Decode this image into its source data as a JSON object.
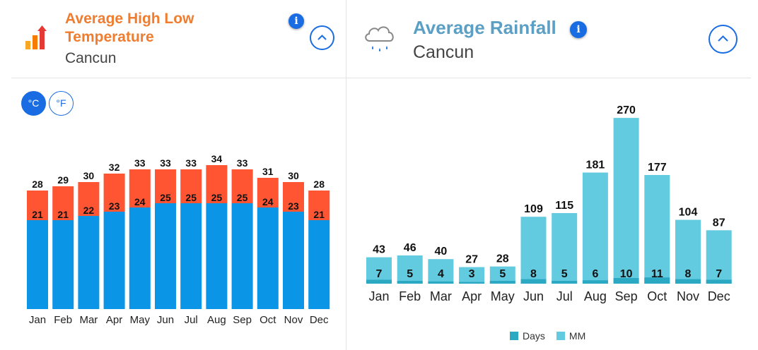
{
  "temperature": {
    "title": "Average High Low Temperature",
    "location": "Cancun",
    "info_label": "i",
    "unit_c": "°C",
    "unit_f": "°F",
    "icon": "temperature-bars-icon",
    "colors": {
      "high": "#ff5533",
      "low": "#0a95e6",
      "title": "#f07d2f",
      "accent": "#1a6ce3"
    }
  },
  "rainfall": {
    "title": "Average Rainfall",
    "location": "Cancun",
    "info_label": "i",
    "icon": "rain-cloud-icon",
    "legend": {
      "days": "Days",
      "mm": "MM"
    },
    "colors": {
      "days": "#2ba8c2",
      "mm": "#63cbe0",
      "title": "#5b9fc4"
    }
  },
  "chart_data": [
    {
      "type": "bar",
      "categories": [
        "Jan",
        "Feb",
        "Mar",
        "Apr",
        "May",
        "Jun",
        "Jul",
        "Aug",
        "Sep",
        "Oct",
        "Nov",
        "Dec"
      ],
      "series": [
        {
          "values": [
            28,
            29,
            30,
            32,
            33,
            33,
            33,
            34,
            33,
            31,
            30,
            28
          ]
        },
        {
          "values": [
            21,
            21,
            22,
            23,
            24,
            25,
            25,
            25,
            25,
            24,
            23,
            21
          ]
        }
      ],
      "title": "Average High Low Temperature",
      "xlabel": "",
      "ylabel": "",
      "grid": false
    },
    {
      "type": "bar",
      "categories": [
        "Jan",
        "Feb",
        "Mar",
        "Apr",
        "May",
        "Jun",
        "Jul",
        "Aug",
        "Sep",
        "Oct",
        "Nov",
        "Dec"
      ],
      "series": [
        {
          "name": "MM",
          "values": [
            43,
            46,
            40,
            27,
            28,
            109,
            115,
            181,
            270,
            177,
            104,
            87
          ]
        },
        {
          "name": "Days",
          "values": [
            7,
            5,
            4,
            3,
            5,
            8,
            5,
            6,
            10,
            11,
            8,
            7
          ]
        }
      ],
      "title": "Average Rainfall",
      "xlabel": "",
      "ylabel": "",
      "grid": false,
      "legend": "bottom"
    }
  ]
}
